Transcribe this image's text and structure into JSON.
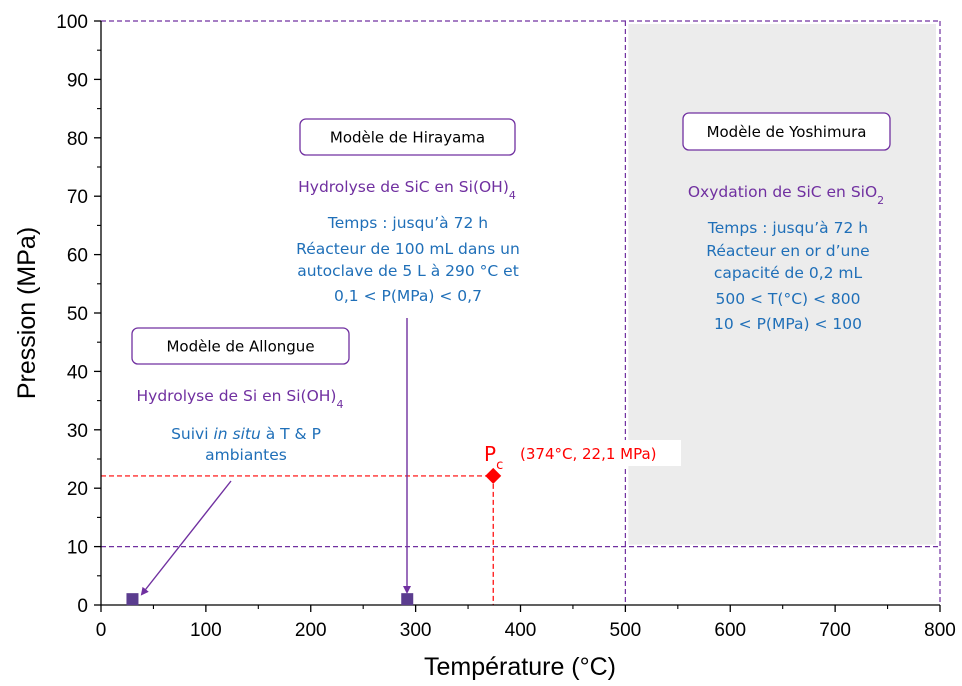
{
  "colors": {
    "purple": "#7030a0",
    "blue": "#1f6fb8",
    "red": "#ff0000",
    "marker": "#5b3d8f",
    "shade": "#ececec",
    "box_border": "#7030a0"
  },
  "chart_data": {
    "type": "scatter",
    "xlabel": "Température (°C)",
    "ylabel": "Pression (MPa)",
    "xlim": [
      0,
      800
    ],
    "ylim": [
      0,
      100
    ],
    "x_ticks": [
      0,
      100,
      200,
      300,
      400,
      500,
      600,
      700,
      800
    ],
    "y_ticks": [
      0,
      10,
      20,
      30,
      40,
      50,
      60,
      70,
      80,
      90,
      100
    ],
    "grid": false,
    "points": [
      {
        "label": "Modèle de Allongue",
        "x": 30,
        "y": 1,
        "marker": "square"
      },
      {
        "label": "Modèle de Hirayama",
        "x": 292,
        "y": 1,
        "marker": "square"
      },
      {
        "label": "Pc",
        "x": 374,
        "y": 22.1,
        "marker": "diamond"
      }
    ],
    "reference_lines": {
      "pc_horizontal_y": 22.1,
      "pc_vertical_x": 374,
      "purple_horizontal_y": [
        10,
        100
      ],
      "purple_vertical_x": [
        500,
        800
      ]
    },
    "shaded_region": {
      "x": [
        500,
        800
      ],
      "y": [
        10,
        100
      ]
    },
    "annotations": {
      "allongue": {
        "title": "Modèle de Allongue",
        "reaction_main": "Hydrolyse de Si en Si(OH)",
        "reaction_sub": "4",
        "line1_prefix": "Suivi ",
        "line1_italic": "in situ",
        "line1_suffix": " à T & P",
        "line2": "ambiantes"
      },
      "hirayama": {
        "title": "Modèle de Hirayama",
        "reaction_main": "Hydrolyse de SiC en Si(OH)",
        "reaction_sub": "4",
        "lines": [
          "Temps : jusqu’à 72 h",
          "Réacteur de 100 mL dans un",
          "autoclave de 5 L à 290 °C et",
          "0,1 < P(MPa) < 0,7"
        ]
      },
      "yoshimura": {
        "title": "Modèle de Yoshimura",
        "reaction_main": "Oxydation de SiC en SiO",
        "reaction_sub": "2",
        "lines": [
          "Temps : jusqu’à 72 h",
          "Réacteur en or d’une",
          "capacité de 0,2 mL",
          "500 < T(°C) < 800",
          "10 < P(MPa) < 100"
        ]
      },
      "pc": {
        "symbol": "P",
        "symbol_sub": "c",
        "coords": "(374°C, 22,1 MPa)"
      }
    }
  }
}
